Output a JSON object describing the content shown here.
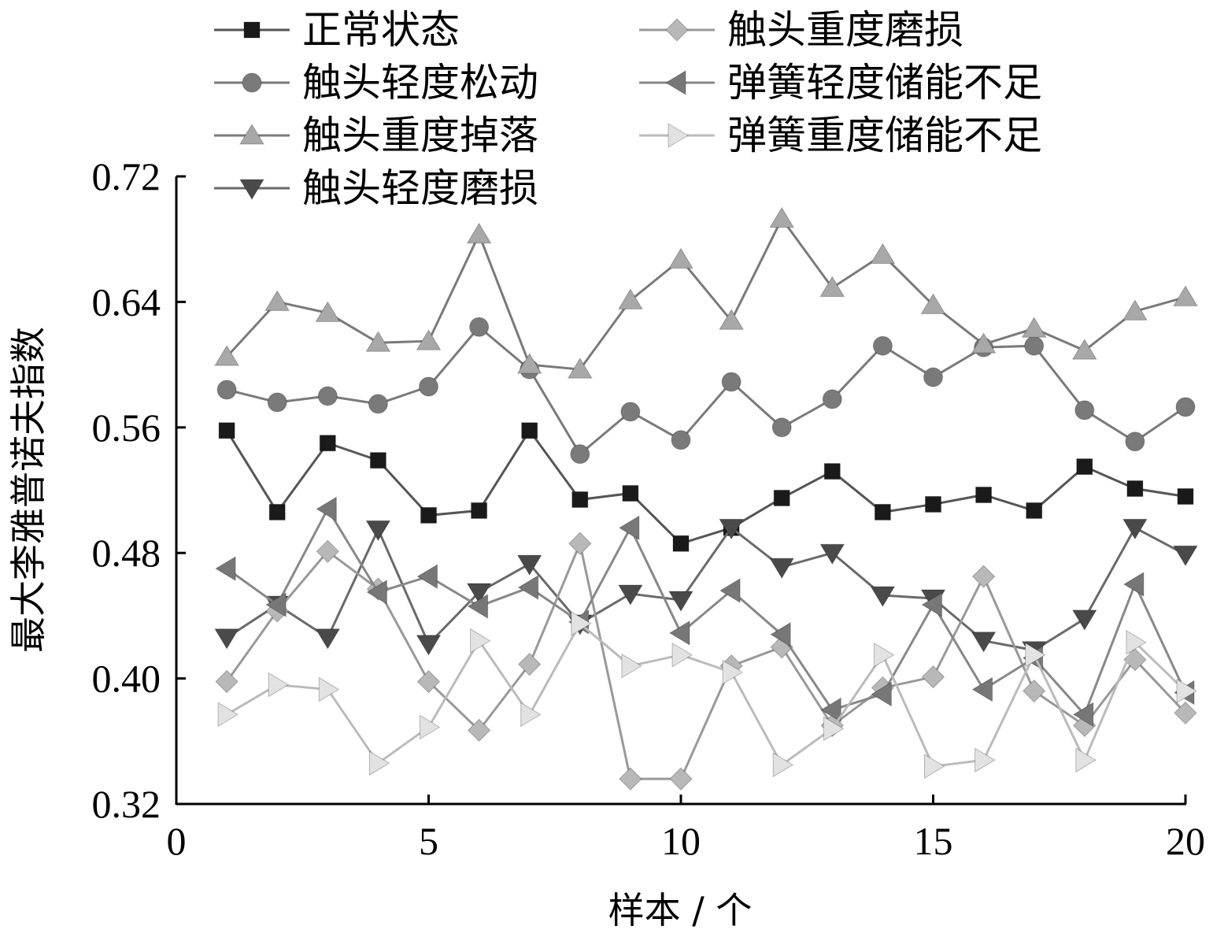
{
  "chart_data": {
    "type": "line",
    "xlabel": "样本 / 个",
    "ylabel": "最大李雅普诺夫指数",
    "xlim": [
      0,
      20
    ],
    "ylim": [
      0.32,
      0.72
    ],
    "xticks": [
      0,
      5,
      10,
      15,
      20
    ],
    "yticks": [
      0.32,
      0.4,
      0.48,
      0.56,
      0.64,
      0.72
    ],
    "xtick_labels": [
      "0",
      "5",
      "10",
      "15",
      "20"
    ],
    "ytick_labels": [
      "0.32",
      "0.40",
      "0.48",
      "0.56",
      "0.64",
      "0.72"
    ],
    "grid": false,
    "legend_position": "top",
    "x": [
      1,
      2,
      3,
      4,
      5,
      6,
      7,
      8,
      9,
      10,
      11,
      12,
      13,
      14,
      15,
      16,
      17,
      18,
      19,
      20
    ],
    "series": [
      {
        "name": "正常状态",
        "marker": "square",
        "color": "#1a1a1a",
        "line_color": "#555555",
        "values": [
          0.558,
          0.506,
          0.55,
          0.539,
          0.504,
          0.507,
          0.558,
          0.514,
          0.518,
          0.486,
          0.496,
          0.515,
          0.532,
          0.506,
          0.511,
          0.517,
          0.507,
          0.535,
          0.521,
          0.516
        ]
      },
      {
        "name": "触头轻度松动",
        "marker": "circle",
        "color": "#7a7a7a",
        "line_color": "#7a7a7a",
        "values": [
          0.584,
          0.576,
          0.58,
          0.575,
          0.586,
          0.624,
          0.597,
          0.543,
          0.57,
          0.552,
          0.589,
          0.56,
          0.578,
          0.612,
          0.592,
          0.611,
          0.612,
          0.571,
          0.551,
          0.573
        ]
      },
      {
        "name": "触头重度掉落",
        "marker": "triangle-up",
        "color": "#a8a8a8",
        "line_color": "#7a7a7a",
        "values": [
          0.605,
          0.64,
          0.633,
          0.614,
          0.615,
          0.683,
          0.6,
          0.597,
          0.641,
          0.667,
          0.628,
          0.693,
          0.649,
          0.67,
          0.638,
          0.613,
          0.623,
          0.609,
          0.634,
          0.643
        ]
      },
      {
        "name": "触头轻度磨损",
        "marker": "triangle-down",
        "color": "#4a4a4a",
        "line_color": "#6a6a6a",
        "values": [
          0.426,
          0.447,
          0.426,
          0.495,
          0.422,
          0.455,
          0.473,
          0.435,
          0.454,
          0.45,
          0.496,
          0.471,
          0.48,
          0.453,
          0.451,
          0.424,
          0.418,
          0.438,
          0.496,
          0.479
        ]
      },
      {
        "name": "触头重度磨损",
        "marker": "diamond",
        "color": "#b8b8b8",
        "line_color": "#999999",
        "values": [
          0.398,
          0.443,
          0.481,
          0.457,
          0.398,
          0.367,
          0.409,
          0.486,
          0.336,
          0.336,
          0.408,
          0.42,
          0.37,
          0.394,
          0.401,
          0.465,
          0.392,
          0.37,
          0.412,
          0.378
        ]
      },
      {
        "name": "弹簧轻度储能不足",
        "marker": "triangle-left",
        "color": "#777777",
        "line_color": "#888888",
        "values": [
          0.47,
          0.447,
          0.508,
          0.455,
          0.465,
          0.446,
          0.458,
          0.436,
          0.496,
          0.429,
          0.456,
          0.428,
          0.38,
          0.39,
          0.447,
          0.393,
          0.413,
          0.377,
          0.46,
          0.391
        ]
      },
      {
        "name": "弹簧重度储能不足",
        "marker": "triangle-right",
        "color": "#e2e2e2",
        "line_color": "#bbbbbb",
        "values": [
          0.377,
          0.396,
          0.393,
          0.346,
          0.369,
          0.424,
          0.377,
          0.435,
          0.408,
          0.415,
          0.404,
          0.345,
          0.368,
          0.415,
          0.344,
          0.348,
          0.415,
          0.348,
          0.423,
          0.392
        ]
      }
    ]
  }
}
